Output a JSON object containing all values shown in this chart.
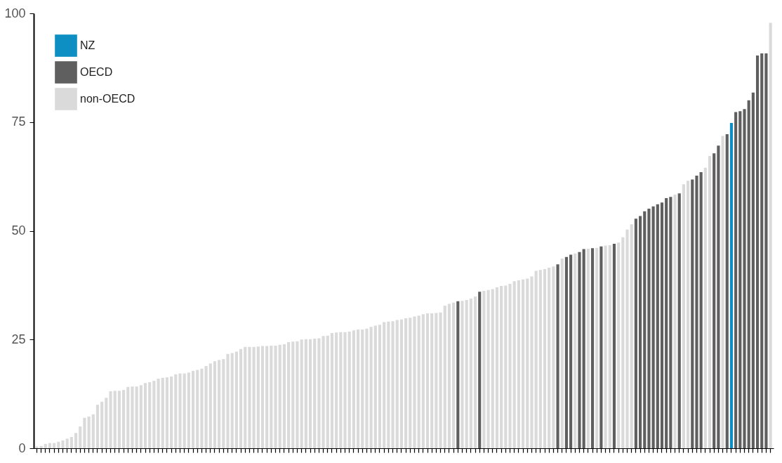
{
  "chart_data": {
    "type": "bar",
    "categories": [
      null,
      null,
      null,
      null,
      null,
      null,
      null,
      null,
      null,
      null,
      null,
      null,
      null,
      null,
      null,
      null,
      null,
      null,
      null,
      null,
      null,
      null,
      null,
      null,
      null,
      null,
      null,
      null,
      null,
      null,
      null,
      null,
      null,
      null,
      null,
      null,
      null,
      null,
      null,
      null,
      null,
      null,
      null,
      null,
      null,
      null,
      null,
      null,
      null,
      null,
      null,
      null,
      null,
      null,
      null,
      null,
      null,
      null,
      null,
      null,
      null,
      null,
      null,
      null,
      null,
      null,
      null,
      null,
      null,
      null,
      null,
      null,
      null,
      null,
      null,
      null,
      null,
      null,
      null,
      null,
      null,
      null,
      null,
      null,
      null,
      null,
      null,
      null,
      null,
      null,
      null,
      null,
      null,
      null,
      null,
      null,
      null,
      null,
      null,
      null,
      null,
      null,
      null,
      null,
      null,
      null,
      null,
      null,
      null,
      null,
      null,
      null,
      null,
      null,
      null,
      null,
      null,
      null,
      null,
      null,
      null,
      null,
      null,
      null,
      null,
      null,
      null,
      null,
      null,
      null,
      null,
      null,
      null,
      null,
      null,
      null,
      null,
      null,
      null,
      null,
      null,
      null,
      null,
      null,
      null,
      null,
      null,
      null,
      null,
      null,
      null,
      null,
      null,
      null,
      null,
      null,
      null,
      null,
      null,
      null,
      null,
      null,
      null,
      null,
      null,
      null,
      null,
      null,
      null,
      null
    ],
    "series": [
      {
        "name": "NZ",
        "color": "#0e8fc3",
        "values": [
          null,
          null,
          null,
          null,
          null,
          null,
          null,
          null,
          null,
          null,
          null,
          null,
          null,
          null,
          null,
          null,
          null,
          null,
          null,
          null,
          null,
          null,
          null,
          null,
          null,
          null,
          null,
          null,
          null,
          null,
          null,
          null,
          null,
          null,
          null,
          null,
          null,
          null,
          null,
          null,
          null,
          null,
          null,
          null,
          null,
          null,
          null,
          null,
          null,
          null,
          null,
          null,
          null,
          null,
          null,
          null,
          null,
          null,
          null,
          null,
          null,
          null,
          null,
          null,
          null,
          null,
          null,
          null,
          null,
          null,
          null,
          null,
          null,
          null,
          null,
          null,
          null,
          null,
          null,
          null,
          null,
          null,
          null,
          null,
          null,
          null,
          null,
          null,
          null,
          null,
          null,
          null,
          null,
          null,
          null,
          null,
          null,
          null,
          null,
          null,
          null,
          null,
          null,
          null,
          null,
          null,
          null,
          null,
          null,
          null,
          null,
          null,
          null,
          null,
          null,
          null,
          null,
          null,
          null,
          null,
          null,
          null,
          null,
          null,
          null,
          null,
          null,
          null,
          null,
          null,
          null,
          null,
          null,
          null,
          null,
          null,
          null,
          null,
          null,
          null,
          null,
          null,
          null,
          null,
          null,
          null,
          null,
          null,
          null,
          null,
          null,
          null,
          null,
          null,
          null,
          null,
          null,
          null,
          null,
          null,
          74.8,
          null,
          null,
          null,
          null,
          null,
          null,
          null,
          null,
          null
        ]
      },
      {
        "name": "OECD",
        "color": "#5f5f5f",
        "values": [
          null,
          null,
          null,
          null,
          null,
          null,
          null,
          null,
          null,
          null,
          null,
          null,
          null,
          null,
          null,
          null,
          null,
          null,
          null,
          null,
          null,
          null,
          null,
          null,
          null,
          null,
          null,
          null,
          null,
          null,
          null,
          null,
          null,
          null,
          null,
          null,
          null,
          null,
          null,
          null,
          null,
          null,
          null,
          null,
          null,
          null,
          null,
          null,
          null,
          null,
          null,
          null,
          null,
          null,
          null,
          null,
          null,
          null,
          null,
          null,
          null,
          null,
          null,
          null,
          null,
          null,
          null,
          null,
          null,
          null,
          null,
          null,
          null,
          null,
          null,
          null,
          null,
          null,
          null,
          null,
          null,
          null,
          null,
          null,
          null,
          null,
          null,
          null,
          null,
          null,
          null,
          null,
          null,
          null,
          null,
          null,
          null,
          33.8,
          null,
          null,
          null,
          null,
          36.0,
          null,
          null,
          null,
          null,
          null,
          null,
          null,
          null,
          null,
          null,
          null,
          null,
          null,
          null,
          null,
          null,
          null,
          42.3,
          null,
          44.0,
          44.5,
          null,
          45.1,
          45.8,
          null,
          46.0,
          null,
          46.4,
          null,
          null,
          47.0,
          null,
          null,
          null,
          null,
          52.8,
          53.4,
          54.5,
          55.1,
          55.6,
          56.1,
          56.5,
          57.5,
          57.8,
          null,
          58.6,
          null,
          null,
          61.8,
          62.7,
          63.5,
          null,
          null,
          67.8,
          69.6,
          null,
          72.2,
          null,
          77.3,
          77.5,
          78.0,
          80.0,
          81.8,
          90.3,
          90.8,
          90.8,
          null
        ]
      },
      {
        "name": "non-OECD",
        "color": "#dadada",
        "values": [
          0.4,
          0.5,
          1.0,
          1.2,
          1.2,
          1.5,
          1.8,
          2.2,
          2.6,
          3.5,
          5.0,
          7.0,
          7.3,
          7.8,
          10.0,
          10.7,
          11.6,
          13.1,
          13.2,
          13.2,
          13.4,
          14.1,
          14.2,
          14.2,
          14.5,
          15.0,
          15.2,
          15.5,
          16.0,
          16.2,
          16.3,
          16.5,
          17.0,
          17.2,
          17.2,
          17.4,
          17.8,
          18.0,
          18.3,
          18.9,
          19.5,
          20.0,
          20.3,
          20.5,
          21.7,
          21.9,
          22.2,
          22.8,
          23.3,
          23.3,
          23.3,
          23.4,
          23.5,
          23.5,
          23.6,
          23.6,
          23.8,
          23.9,
          24.4,
          24.5,
          24.6,
          25.0,
          25.1,
          25.1,
          25.2,
          25.3,
          25.8,
          25.9,
          26.5,
          26.6,
          26.7,
          26.7,
          26.8,
          27.1,
          27.3,
          27.3,
          27.5,
          27.9,
          28.2,
          28.4,
          29.0,
          29.1,
          29.2,
          29.5,
          29.6,
          29.9,
          30.0,
          30.3,
          30.5,
          30.8,
          31.0,
          31.0,
          31.1,
          31.2,
          32.8,
          33.2,
          33.5,
          null,
          33.9,
          34.1,
          34.4,
          34.9,
          null,
          36.2,
          36.4,
          36.6,
          37.0,
          37.3,
          37.4,
          37.8,
          38.4,
          38.6,
          38.8,
          39.0,
          39.5,
          40.8,
          41.0,
          41.2,
          41.5,
          41.8,
          null,
          43.6,
          null,
          null,
          44.8,
          null,
          null,
          45.9,
          null,
          46.1,
          null,
          46.6,
          46.7,
          null,
          47.3,
          48.5,
          50.3,
          51.5,
          null,
          null,
          null,
          null,
          null,
          null,
          null,
          null,
          null,
          58.3,
          null,
          60.7,
          61.5,
          null,
          null,
          null,
          64.5,
          67.2,
          null,
          null,
          71.8,
          null,
          null,
          null,
          null,
          null,
          null,
          null,
          null,
          null,
          null,
          97.8
        ]
      }
    ],
    "ylim": [
      0,
      100
    ],
    "yticks": [
      0,
      25,
      50,
      75,
      100
    ],
    "legend": "top left",
    "tick_labels": "y"
  }
}
